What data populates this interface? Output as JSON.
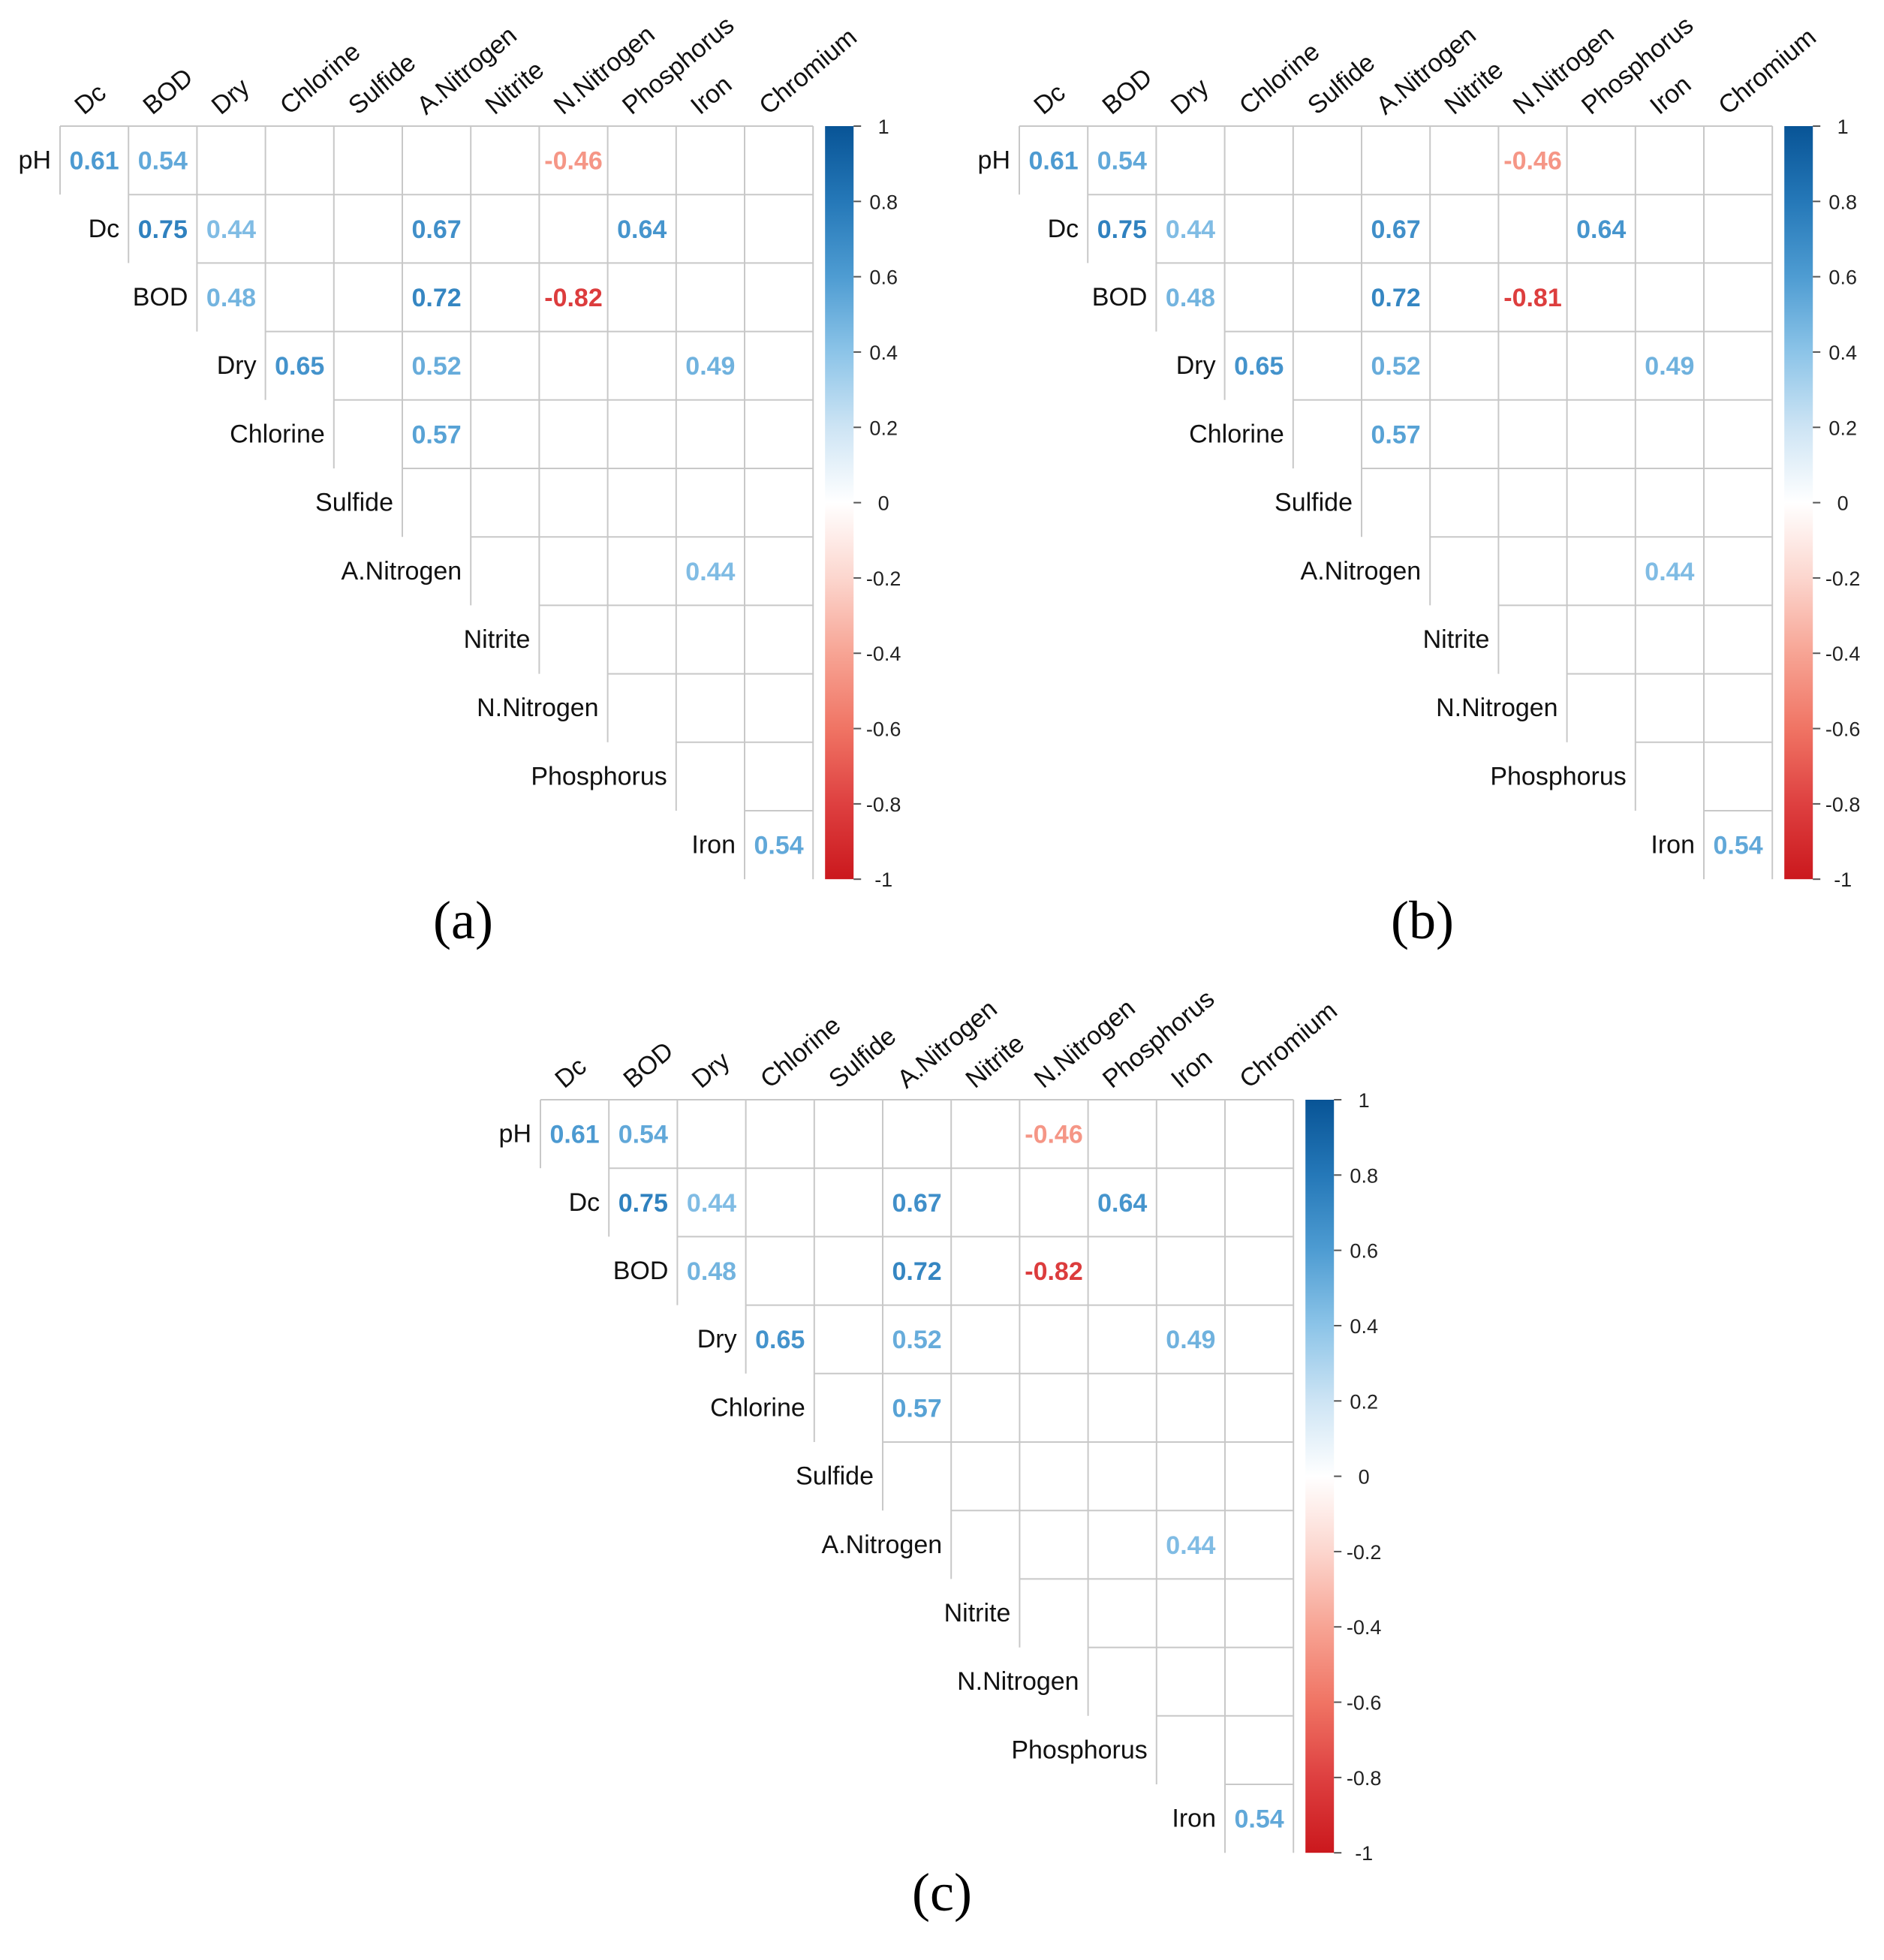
{
  "figure": {
    "panels": [
      {
        "label": "(a)"
      },
      {
        "label": "(b)"
      },
      {
        "label": "(c)"
      }
    ]
  },
  "chart_data": [
    {
      "type": "heatmap",
      "variant": "correlation-upper-triangle",
      "panel_label": "(a)",
      "row_labels": [
        "pH",
        "Dc",
        "BOD",
        "Dry",
        "Chlorine",
        "Sulfide",
        "A.Nitrogen",
        "Nitrite",
        "N.Nitrogen",
        "Phosphorus",
        "Iron"
      ],
      "col_labels": [
        "Dc",
        "BOD",
        "Dry",
        "Chlorine",
        "Sulfide",
        "A.Nitrogen",
        "Nitrite",
        "N.Nitrogen",
        "Phosphorus",
        "Iron",
        "Chromium"
      ],
      "cells": [
        {
          "row": "pH",
          "col": "Dc",
          "value": 0.61
        },
        {
          "row": "pH",
          "col": "BOD",
          "value": 0.54
        },
        {
          "row": "pH",
          "col": "N.Nitrogen",
          "value": -0.46
        },
        {
          "row": "Dc",
          "col": "BOD",
          "value": 0.75
        },
        {
          "row": "Dc",
          "col": "Dry",
          "value": 0.44
        },
        {
          "row": "Dc",
          "col": "A.Nitrogen",
          "value": 0.67
        },
        {
          "row": "Dc",
          "col": "Phosphorus",
          "value": 0.64
        },
        {
          "row": "BOD",
          "col": "Dry",
          "value": 0.48
        },
        {
          "row": "BOD",
          "col": "A.Nitrogen",
          "value": 0.72
        },
        {
          "row": "BOD",
          "col": "N.Nitrogen",
          "value": -0.82
        },
        {
          "row": "Dry",
          "col": "Chlorine",
          "value": 0.65
        },
        {
          "row": "Dry",
          "col": "A.Nitrogen",
          "value": 0.52
        },
        {
          "row": "Dry",
          "col": "Iron",
          "value": 0.49
        },
        {
          "row": "Chlorine",
          "col": "A.Nitrogen",
          "value": 0.57
        },
        {
          "row": "A.Nitrogen",
          "col": "Iron",
          "value": 0.44
        },
        {
          "row": "Iron",
          "col": "Chromium",
          "value": 0.54
        }
      ],
      "colorbar": {
        "range": [
          -1,
          1
        ],
        "ticks": [
          "1",
          "0.8",
          "0.6",
          "0.4",
          "0.2",
          "0",
          "-0.2",
          "-0.4",
          "-0.6",
          "-0.8",
          "-1"
        ]
      }
    },
    {
      "type": "heatmap",
      "variant": "correlation-upper-triangle",
      "panel_label": "(b)",
      "row_labels": [
        "pH",
        "Dc",
        "BOD",
        "Dry",
        "Chlorine",
        "Sulfide",
        "A.Nitrogen",
        "Nitrite",
        "N.Nitrogen",
        "Phosphorus",
        "Iron"
      ],
      "col_labels": [
        "Dc",
        "BOD",
        "Dry",
        "Chlorine",
        "Sulfide",
        "A.Nitrogen",
        "Nitrite",
        "N.Nitrogen",
        "Phosphorus",
        "Iron",
        "Chromium"
      ],
      "cells": [
        {
          "row": "pH",
          "col": "Dc",
          "value": 0.61
        },
        {
          "row": "pH",
          "col": "BOD",
          "value": 0.54
        },
        {
          "row": "pH",
          "col": "N.Nitrogen",
          "value": -0.46
        },
        {
          "row": "Dc",
          "col": "BOD",
          "value": 0.75
        },
        {
          "row": "Dc",
          "col": "Dry",
          "value": 0.44
        },
        {
          "row": "Dc",
          "col": "A.Nitrogen",
          "value": 0.67
        },
        {
          "row": "Dc",
          "col": "Phosphorus",
          "value": 0.64
        },
        {
          "row": "BOD",
          "col": "Dry",
          "value": 0.48
        },
        {
          "row": "BOD",
          "col": "A.Nitrogen",
          "value": 0.72
        },
        {
          "row": "BOD",
          "col": "N.Nitrogen",
          "value": -0.81
        },
        {
          "row": "Dry",
          "col": "Chlorine",
          "value": 0.65
        },
        {
          "row": "Dry",
          "col": "A.Nitrogen",
          "value": 0.52
        },
        {
          "row": "Dry",
          "col": "Iron",
          "value": 0.49
        },
        {
          "row": "Chlorine",
          "col": "A.Nitrogen",
          "value": 0.57
        },
        {
          "row": "A.Nitrogen",
          "col": "Iron",
          "value": 0.44
        },
        {
          "row": "Iron",
          "col": "Chromium",
          "value": 0.54
        }
      ],
      "colorbar": {
        "range": [
          -1,
          1
        ],
        "ticks": [
          "1",
          "0.8",
          "0.6",
          "0.4",
          "0.2",
          "0",
          "-0.2",
          "-0.4",
          "-0.6",
          "-0.8",
          "-1"
        ]
      }
    },
    {
      "type": "heatmap",
      "variant": "correlation-upper-triangle",
      "panel_label": "(c)",
      "row_labels": [
        "pH",
        "Dc",
        "BOD",
        "Dry",
        "Chlorine",
        "Sulfide",
        "A.Nitrogen",
        "Nitrite",
        "N.Nitrogen",
        "Phosphorus",
        "Iron"
      ],
      "col_labels": [
        "Dc",
        "BOD",
        "Dry",
        "Chlorine",
        "Sulfide",
        "A.Nitrogen",
        "Nitrite",
        "N.Nitrogen",
        "Phosphorus",
        "Iron",
        "Chromium"
      ],
      "cells": [
        {
          "row": "pH",
          "col": "Dc",
          "value": 0.61
        },
        {
          "row": "pH",
          "col": "BOD",
          "value": 0.54
        },
        {
          "row": "pH",
          "col": "N.Nitrogen",
          "value": -0.46
        },
        {
          "row": "Dc",
          "col": "BOD",
          "value": 0.75
        },
        {
          "row": "Dc",
          "col": "Dry",
          "value": 0.44
        },
        {
          "row": "Dc",
          "col": "A.Nitrogen",
          "value": 0.67
        },
        {
          "row": "Dc",
          "col": "Phosphorus",
          "value": 0.64
        },
        {
          "row": "BOD",
          "col": "Dry",
          "value": 0.48
        },
        {
          "row": "BOD",
          "col": "A.Nitrogen",
          "value": 0.72
        },
        {
          "row": "BOD",
          "col": "N.Nitrogen",
          "value": -0.82
        },
        {
          "row": "Dry",
          "col": "Chlorine",
          "value": 0.65
        },
        {
          "row": "Dry",
          "col": "A.Nitrogen",
          "value": 0.52
        },
        {
          "row": "Dry",
          "col": "Iron",
          "value": 0.49
        },
        {
          "row": "Chlorine",
          "col": "A.Nitrogen",
          "value": 0.57
        },
        {
          "row": "A.Nitrogen",
          "col": "Iron",
          "value": 0.44
        },
        {
          "row": "Iron",
          "col": "Chromium",
          "value": 0.54
        }
      ],
      "colorbar": {
        "range": [
          -1,
          1
        ],
        "ticks": [
          "1",
          "0.8",
          "0.6",
          "0.4",
          "0.2",
          "0",
          "-0.2",
          "-0.4",
          "-0.6",
          "-0.8",
          "-1"
        ]
      }
    }
  ]
}
